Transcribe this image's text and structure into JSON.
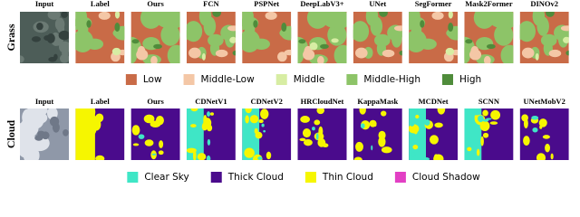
{
  "panels": [
    {
      "row_label": "Grass",
      "columns": [
        "Input",
        "Label",
        "Ours",
        "FCN",
        "PSPNet",
        "DeepLabV3+",
        "UNet",
        "SegFormer",
        "Mask2Former",
        "DINOv2"
      ],
      "legend": [
        {
          "label": "Low",
          "color": "#c96b47"
        },
        {
          "label": "Middle-Low",
          "color": "#f4c7a6"
        },
        {
          "label": "Middle",
          "color": "#d7eda3"
        },
        {
          "label": "Middle-High",
          "color": "#8dc468"
        },
        {
          "label": "High",
          "color": "#4f8c3b"
        }
      ]
    },
    {
      "row_label": "Cloud",
      "columns": [
        "Input",
        "Label",
        "Ours",
        "CDNetV1",
        "CDNetV2",
        "HRCloudNet",
        "KappaMask",
        "MCDNet",
        "SCNN",
        "UNetMobV2"
      ],
      "legend": [
        {
          "label": "Clear Sky",
          "color": "#3fe6c6"
        },
        {
          "label": "Thick Cloud",
          "color": "#4a0b8c"
        },
        {
          "label": "Thin Cloud",
          "color": "#f6f600"
        },
        {
          "label": "Cloud Shadow",
          "color": "#e23fc4"
        }
      ]
    }
  ]
}
